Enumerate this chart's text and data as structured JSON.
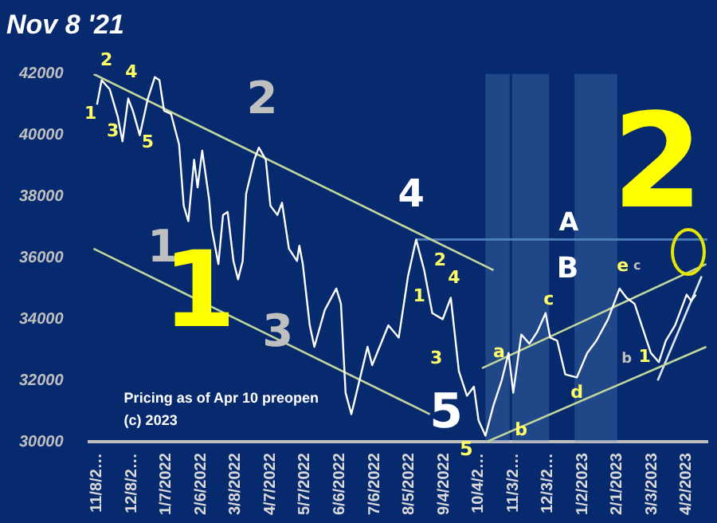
{
  "chart_data": {
    "type": "line",
    "title": "Nov 8 '21",
    "marker": "none",
    "xlim": [
      "2021-11-01",
      "2023-04-20"
    ],
    "ylim": [
      30000,
      42000
    ],
    "yticks": [
      30000,
      32000,
      34000,
      36000,
      38000,
      40000,
      42000
    ],
    "xticks": [
      {
        "value": "2021-11-08",
        "label": "11/8/2…"
      },
      {
        "value": "2021-12-08",
        "label": "12/8/2…"
      },
      {
        "value": "2022-01-07",
        "label": "1/7/2022"
      },
      {
        "value": "2022-02-06",
        "label": "2/6/2022"
      },
      {
        "value": "2022-03-08",
        "label": "3/8/2022"
      },
      {
        "value": "2022-04-07",
        "label": "4/7/2022"
      },
      {
        "value": "2022-05-07",
        "label": "5/7/2022"
      },
      {
        "value": "2022-06-06",
        "label": "6/6/2022"
      },
      {
        "value": "2022-07-06",
        "label": "7/6/2022"
      },
      {
        "value": "2022-08-05",
        "label": "8/5/2022"
      },
      {
        "value": "2022-09-04",
        "label": "9/4/2022"
      },
      {
        "value": "2022-10-04",
        "label": "10/4/2…"
      },
      {
        "value": "2022-11-03",
        "label": "11/3/2…"
      },
      {
        "value": "2022-12-03",
        "label": "12/3/2…"
      },
      {
        "value": "2023-01-02",
        "label": "1/2/2023"
      },
      {
        "value": "2023-02-01",
        "label": "2/1/2023"
      },
      {
        "value": "2023-03-03",
        "label": "3/3/2023"
      },
      {
        "value": "2023-04-02",
        "label": "4/2/2023"
      }
    ],
    "bands": [
      {
        "axis": "x",
        "from": "2022-10-10",
        "to": "2022-10-31",
        "color": "#4f81bd"
      },
      {
        "axis": "x",
        "from": "2022-11-02",
        "to": "2022-12-04",
        "color": "#4f81bd"
      },
      {
        "axis": "x",
        "from": "2022-12-26",
        "to": "2023-02-01",
        "color": "#4f81bd"
      }
    ],
    "series": [
      {
        "color": "#ffffff",
        "x": [
          "2021-11-08",
          "2021-11-12",
          "2021-11-19",
          "2021-11-26",
          "2021-11-30",
          "2021-12-05",
          "2021-12-09",
          "2021-12-15",
          "2021-12-22",
          "2021-12-28",
          "2022-01-01",
          "2022-01-05",
          "2022-01-11",
          "2022-01-18",
          "2022-01-22",
          "2022-01-26",
          "2022-01-31",
          "2022-02-03",
          "2022-02-07",
          "2022-02-13",
          "2022-02-15",
          "2022-02-21",
          "2022-02-25",
          "2022-03-01",
          "2022-03-06",
          "2022-03-10",
          "2022-03-14",
          "2022-03-17",
          "2022-03-24",
          "2022-03-28",
          "2022-04-03",
          "2022-04-07",
          "2022-04-13",
          "2022-04-17",
          "2022-04-23",
          "2022-04-30",
          "2022-05-02",
          "2022-05-05",
          "2022-05-11",
          "2022-05-15",
          "2022-05-24",
          "2022-06-03",
          "2022-06-07",
          "2022-06-11",
          "2022-06-16",
          "2022-06-23",
          "2022-06-30",
          "2022-07-04",
          "2022-07-18",
          "2022-07-27",
          "2022-08-04",
          "2022-08-11",
          "2022-08-18",
          "2022-08-25",
          "2022-09-03",
          "2022-09-10",
          "2022-09-17",
          "2022-09-24",
          "2022-09-30",
          "2022-10-04",
          "2022-10-10",
          "2022-10-17",
          "2022-10-24",
          "2022-10-30",
          "2022-11-03",
          "2022-11-10",
          "2022-11-17",
          "2022-11-24",
          "2022-12-01",
          "2022-12-05",
          "2022-12-11",
          "2022-12-18",
          "2022-12-28",
          "2023-01-06",
          "2023-01-14",
          "2023-01-24",
          "2023-02-03",
          "2023-02-09",
          "2023-02-16",
          "2023-02-23",
          "2023-03-02",
          "2023-03-09",
          "2023-03-15",
          "2023-03-23",
          "2023-04-02",
          "2023-04-06",
          "2023-04-10"
        ],
        "values": [
          41000,
          41800,
          41500,
          40600,
          39800,
          41200,
          40800,
          40000,
          41200,
          41900,
          41800,
          40800,
          40700,
          39700,
          37700,
          37200,
          39200,
          38300,
          39500,
          37900,
          37000,
          35800,
          37400,
          37500,
          35900,
          35300,
          35900,
          38100,
          39200,
          39600,
          39200,
          37700,
          37400,
          37800,
          36300,
          35900,
          36400,
          35800,
          33800,
          33100,
          34300,
          35000,
          34500,
          31600,
          30900,
          32000,
          33100,
          32500,
          33800,
          33400,
          35400,
          36600,
          35600,
          34200,
          34000,
          34700,
          32300,
          31500,
          31800,
          30700,
          30200,
          31200,
          32000,
          32900,
          31600,
          33500,
          33200,
          33600,
          34200,
          33400,
          33300,
          32200,
          32100,
          32900,
          33300,
          34000,
          35000,
          34700,
          34500,
          33700,
          32900,
          32600,
          33300,
          33800,
          34800,
          34600,
          34800
        ]
      },
      {
        "type": "line",
        "color": "#c3d69b",
        "x": [
          "2021-11-05",
          "2022-10-17"
        ],
        "values": [
          42000,
          35600
        ]
      },
      {
        "type": "line",
        "color": "#c3d69b",
        "x": [
          "2021-11-05",
          "2022-08-23"
        ],
        "values": [
          36300,
          30900
        ]
      },
      {
        "type": "line",
        "color": "#c3d69b",
        "x": [
          "2022-10-07",
          "2023-04-19"
        ],
        "values": [
          32400,
          35800
        ]
      },
      {
        "type": "line",
        "color": "#c3d69b",
        "x": [
          "2022-10-11",
          "2023-04-19"
        ],
        "values": [
          30000,
          33100
        ]
      },
      {
        "type": "line",
        "color": "#dde6f5",
        "x": [
          "2023-03-08",
          "2023-04-15"
        ],
        "values": [
          32000,
          35400
        ]
      },
      {
        "type": "line",
        "color": "#4f81bd",
        "x": [
          "2022-08-11",
          "2023-04-20"
        ],
        "values": [
          36600,
          36600
        ]
      }
    ],
    "annotations": [
      {
        "text": "1",
        "x": "2021-11-08",
        "y": 41000
      },
      {
        "text": "2",
        "x": "2021-11-12",
        "y": 41800
      },
      {
        "text": "3",
        "x": "2021-11-30",
        "y": 39800
      },
      {
        "text": "4",
        "x": "2021-12-05",
        "y": 41200
      },
      {
        "text": "5",
        "x": "2021-12-15",
        "y": 40000
      },
      {
        "text": "2",
        "x": "2022-03-28",
        "y": 39600
      },
      {
        "text": "1",
        "x": "2022-01-26",
        "y": 37200
      },
      {
        "text": "3",
        "x": "2022-05-15",
        "y": 33100
      },
      {
        "text": "1",
        "x": "2022-02-21",
        "y": 35800
      },
      {
        "text": "4",
        "x": "2022-08-11",
        "y": 36600
      },
      {
        "text": "2",
        "x": "2022-08-18",
        "y": 35600
      },
      {
        "text": "1",
        "x": "2022-08-04",
        "y": 35400
      },
      {
        "text": "4",
        "x": "2022-09-10",
        "y": 34700
      },
      {
        "text": "3",
        "x": "2022-09-03",
        "y": 34000
      },
      {
        "text": "5",
        "x": "2022-09-24",
        "y": 31500
      },
      {
        "text": "5",
        "x": "2022-10-10",
        "y": 30200
      },
      {
        "text": "a",
        "x": "2022-10-30",
        "y": 32900
      },
      {
        "text": "b",
        "x": "2022-11-03",
        "y": 31600
      },
      {
        "text": "c",
        "x": "2022-12-01",
        "y": 34200
      },
      {
        "text": "d",
        "x": "2022-12-28",
        "y": 32100
      },
      {
        "text": "e",
        "x": "2023-02-03",
        "y": 35000
      },
      {
        "text": "c",
        "x": "2023-02-03",
        "y": 35000
      },
      {
        "text": "b",
        "x": "2023-02-23",
        "y": 33700
      },
      {
        "text": "1",
        "x": "2023-03-09",
        "y": 32600
      },
      {
        "text": "A",
        "x": "2022-12-21",
        "y": 36600
      },
      {
        "text": "B",
        "x": "2022-12-20",
        "y": 36600
      },
      {
        "text": "2",
        "x": "2023-03-08",
        "y": 36600
      },
      "Pricing as of Apr 10 preopen",
      "(c) 2023"
    ]
  }
}
